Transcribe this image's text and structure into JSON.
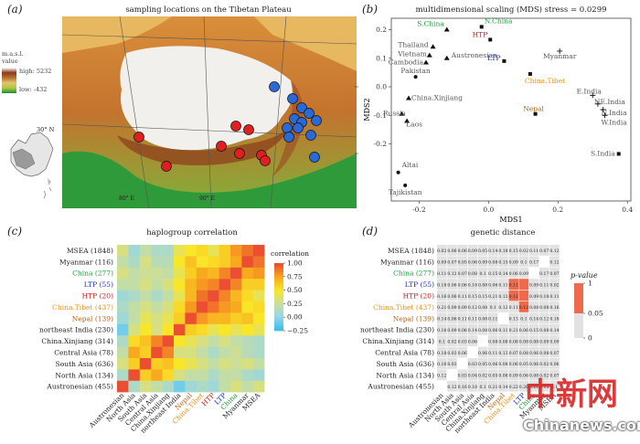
{
  "panels": {
    "a": {
      "letter": "(a)",
      "title": "sampling locations on the Tibetan Plateau",
      "legend_title": "m.a.s.l. value",
      "legend_high": "high: 5232",
      "legend_low": "low: -432",
      "lat_label": "30° N",
      "lon_labels": [
        "80° E",
        "90° E"
      ]
    },
    "b": {
      "letter": "(b)",
      "title": "multidimensional scaling (MDS) stress = 0.0299",
      "xlabel": "MDS1",
      "ylabel": "MDS2"
    },
    "c": {
      "letter": "(c)",
      "title": "haplogroup correlation",
      "legend_title": "correlation"
    },
    "d": {
      "letter": "(d)",
      "title": "genetic distance",
      "legend_title": "p-value",
      "legend_ticks": [
        "1",
        "0.05",
        "0"
      ]
    }
  },
  "colors": {
    "china": "#1a9e3a",
    "ltp": "#1a2fbf",
    "htp": "#d01818",
    "tibet": "#e8901a",
    "nepal": "#b8600a",
    "black": "#222222",
    "site_red": "#e02020",
    "site_blue": "#2a6ad8"
  },
  "map_sites": {
    "red": [
      [
        152,
        150
      ],
      [
        182,
        182
      ],
      [
        258,
        138
      ],
      [
        272,
        142
      ],
      [
        242,
        160
      ],
      [
        262,
        168
      ],
      [
        286,
        170
      ],
      [
        290,
        176
      ]
    ],
    "blue": [
      [
        300,
        95
      ],
      [
        320,
        108
      ],
      [
        330,
        118
      ],
      [
        338,
        124
      ],
      [
        322,
        130
      ],
      [
        330,
        134
      ],
      [
        346,
        132
      ],
      [
        314,
        140
      ],
      [
        326,
        140
      ],
      [
        340,
        148
      ],
      [
        344,
        172
      ],
      [
        316,
        150
      ]
    ]
  },
  "chart_data": [
    {
      "type": "scatter",
      "title": "multidimensional scaling (MDS) stress = 0.0299",
      "xlabel": "MDS1",
      "ylabel": "MDS2",
      "xlim": [
        -0.28,
        0.41
      ],
      "ylim": [
        -0.4,
        0.24
      ],
      "xticks": [
        -0.2,
        0.0,
        0.2,
        0.4
      ],
      "yticks": [
        -0.2,
        -0.1,
        0.0,
        0.1,
        0.2
      ],
      "points": [
        {
          "label": "N.China",
          "x": -0.02,
          "y": 0.21,
          "color": "china",
          "marker": "square"
        },
        {
          "label": "S.China",
          "x": -0.12,
          "y": 0.2,
          "color": "china",
          "marker": "triangle"
        },
        {
          "label": "HTP",
          "x": 0.005,
          "y": 0.165,
          "color": "htp",
          "marker": "square"
        },
        {
          "label": "Thailand",
          "x": -0.16,
          "y": 0.14,
          "color": "black",
          "marker": "triangle"
        },
        {
          "label": "Vietnam",
          "x": -0.17,
          "y": 0.11,
          "color": "black",
          "marker": "triangle"
        },
        {
          "label": "Austronesian",
          "x": -0.12,
          "y": 0.1,
          "color": "black",
          "marker": "triangle"
        },
        {
          "label": "Cambodia",
          "x": -0.18,
          "y": 0.085,
          "color": "black",
          "marker": "triangle"
        },
        {
          "label": "LTP",
          "x": 0.045,
          "y": 0.09,
          "color": "ltp",
          "marker": "square"
        },
        {
          "label": "Myanmar",
          "x": 0.205,
          "y": 0.125,
          "color": "black",
          "marker": "plus"
        },
        {
          "label": "China.Tibet",
          "x": 0.12,
          "y": 0.045,
          "color": "tibet",
          "marker": "square"
        },
        {
          "label": "Pakistan",
          "x": -0.21,
          "y": 0.035,
          "color": "black",
          "marker": "circle"
        },
        {
          "label": "China.Xinjiang",
          "x": -0.23,
          "y": -0.04,
          "color": "black",
          "marker": "triangle"
        },
        {
          "label": "Nepal",
          "x": 0.135,
          "y": -0.095,
          "color": "nepal",
          "marker": "square"
        },
        {
          "label": "E.India",
          "x": 0.3,
          "y": -0.03,
          "color": "black",
          "marker": "plus"
        },
        {
          "label": "NE.India",
          "x": 0.315,
          "y": -0.06,
          "color": "black",
          "marker": "plus"
        },
        {
          "label": "N.India",
          "x": 0.33,
          "y": -0.08,
          "color": "black",
          "marker": "plus"
        },
        {
          "label": "W.India",
          "x": 0.335,
          "y": -0.1,
          "color": "black",
          "marker": "plus"
        },
        {
          "label": "Russia",
          "x": -0.25,
          "y": -0.095,
          "color": "black",
          "marker": "triangle"
        },
        {
          "label": "Laos",
          "x": -0.235,
          "y": -0.12,
          "color": "black",
          "marker": "triangle"
        },
        {
          "label": "S.India",
          "x": 0.375,
          "y": -0.235,
          "color": "black",
          "marker": "square"
        },
        {
          "label": "Altai",
          "x": -0.26,
          "y": -0.3,
          "color": "black",
          "marker": "circle"
        },
        {
          "label": "Tajikistan",
          "x": -0.24,
          "y": -0.345,
          "color": "black",
          "marker": "circle"
        }
      ]
    },
    {
      "type": "heatmap",
      "title": "haplogroup correlation",
      "legend_title": "correlation",
      "legend_ticks": [
        1.0,
        0.75,
        0.5,
        0.25,
        0.0,
        -0.25
      ],
      "rows": [
        {
          "label": "MSEA (1848)",
          "color": "black"
        },
        {
          "label": "Myanmar (116)",
          "color": "black"
        },
        {
          "label": "China (277)",
          "color": "china"
        },
        {
          "label": "LTP (55)",
          "color": "ltp"
        },
        {
          "label": "HTP (20)",
          "color": "htp"
        },
        {
          "label": "China.Tibet (437)",
          "color": "tibet"
        },
        {
          "label": "Nepal (139)",
          "color": "nepal"
        },
        {
          "label": "northeast India (230)",
          "color": "black"
        },
        {
          "label": "China.Xinjiang (314)",
          "color": "black"
        },
        {
          "label": "Central Asia (78)",
          "color": "black"
        },
        {
          "label": "South Asia (636)",
          "color": "black"
        },
        {
          "label": "North Asia (134)",
          "color": "black"
        },
        {
          "label": "Austronesian (455)",
          "color": "black"
        }
      ],
      "columns": [
        {
          "label": "Austronesian",
          "color": "black"
        },
        {
          "label": "North Asia",
          "color": "black"
        },
        {
          "label": "South Asia",
          "color": "black"
        },
        {
          "label": "Central Asia",
          "color": "black"
        },
        {
          "label": "China.Xinjiang",
          "color": "black"
        },
        {
          "label": "northeast India",
          "color": "black"
        },
        {
          "label": "Nepal",
          "color": "nepal"
        },
        {
          "label": "China.Tibet",
          "color": "tibet"
        },
        {
          "label": "HTP",
          "color": "htp"
        },
        {
          "label": "LTP",
          "color": "ltp"
        },
        {
          "label": "China",
          "color": "china"
        },
        {
          "label": "Myanmar",
          "color": "black"
        },
        {
          "label": "MSEA",
          "color": "black"
        }
      ],
      "values": [
        [
          0.3,
          0.05,
          0.2,
          0.1,
          0.1,
          0.4,
          0.5,
          0.55,
          0.4,
          0.6,
          0.8,
          0.9,
          1.0
        ],
        [
          0.2,
          0.1,
          0.3,
          0.15,
          0.15,
          0.5,
          0.65,
          0.5,
          0.55,
          0.6,
          0.75,
          1.0,
          0.9
        ],
        [
          0.3,
          0.2,
          0.25,
          0.25,
          0.2,
          0.4,
          0.6,
          0.75,
          0.7,
          0.85,
          1.0,
          0.75,
          0.8
        ],
        [
          0.2,
          0.2,
          0.3,
          0.2,
          0.3,
          0.5,
          0.7,
          0.8,
          0.85,
          1.0,
          0.85,
          0.6,
          0.6
        ],
        [
          0.05,
          0.1,
          0.2,
          0.1,
          0.2,
          0.4,
          0.7,
          0.9,
          1.0,
          0.85,
          0.7,
          0.55,
          0.4
        ],
        [
          0.1,
          0.2,
          0.3,
          0.2,
          0.3,
          0.55,
          0.8,
          1.0,
          0.9,
          0.8,
          0.75,
          0.5,
          0.55
        ],
        [
          0.05,
          0.2,
          0.4,
          0.3,
          0.4,
          0.6,
          1.0,
          0.8,
          0.7,
          0.7,
          0.6,
          0.65,
          0.5
        ],
        [
          -0.1,
          0.3,
          0.5,
          0.3,
          0.5,
          1.0,
          0.6,
          0.55,
          0.4,
          0.5,
          0.4,
          0.5,
          0.4
        ],
        [
          0.1,
          0.55,
          0.65,
          0.85,
          1.0,
          0.5,
          0.4,
          0.3,
          0.2,
          0.3,
          0.2,
          0.15,
          0.1
        ],
        [
          0.2,
          0.75,
          0.6,
          1.0,
          0.85,
          0.3,
          0.3,
          0.2,
          0.1,
          0.2,
          0.25,
          0.15,
          0.1
        ],
        [
          0.3,
          0.6,
          1.0,
          0.6,
          0.65,
          0.5,
          0.4,
          0.3,
          0.2,
          0.3,
          0.25,
          0.3,
          0.2
        ],
        [
          0.1,
          1.0,
          0.6,
          0.75,
          0.55,
          0.3,
          0.2,
          0.2,
          0.1,
          0.2,
          0.2,
          0.1,
          0.05
        ],
        [
          1.0,
          0.1,
          0.3,
          0.2,
          0.1,
          -0.1,
          0.05,
          0.1,
          0.05,
          0.2,
          0.3,
          0.2,
          0.3
        ]
      ]
    },
    {
      "type": "table",
      "title": "genetic distance",
      "rows": [
        "MSEA (1848)",
        "Myanmar (116)",
        "China (277)",
        "LTP (55)",
        "HTP (20)",
        "China.Tibet (437)",
        "Nepal (139)",
        "northeast India (230)",
        "China.Xinjiang (314)",
        "Central Asia (78)",
        "South Asia (636)",
        "North Asia (134)",
        "Austronesian (455)"
      ],
      "row_colors": [
        "black",
        "black",
        "china",
        "ltp",
        "htp",
        "tibet",
        "nepal",
        "black",
        "black",
        "black",
        "black",
        "black",
        "black"
      ],
      "columns": [
        "Austronesian",
        "North Asia",
        "South Asia",
        "Central Asia",
        "China.Xinjiang",
        "northeast India",
        "Nepal",
        "China.Tibet",
        "LTP",
        "China",
        "Myanmar",
        "MSEA"
      ],
      "column_colors": [
        "black",
        "black",
        "black",
        "black",
        "black",
        "black",
        "nepal",
        "tibet",
        "ltp",
        "china",
        "black",
        "black"
      ],
      "cells": [
        [
          "0.02",
          "0.06",
          "0.06",
          "0.09",
          "0.05",
          "0.14",
          "0.18",
          "0.15",
          "0.02",
          "0.11",
          "0.07",
          "0.12"
        ],
        [
          "0.09",
          "0.07",
          "0.05",
          "0.06",
          "0.09",
          "0.08",
          "0.15",
          "0.09",
          "0.1",
          "0.17",
          "",
          "0.12"
        ],
        [
          "0.11",
          "0.12",
          "0.07",
          "0.08",
          "0.1",
          "0.15",
          "0.14",
          "0.06",
          "0.09",
          "",
          "0.17",
          "0.07"
        ],
        [
          "0.18",
          "0.06",
          "0.06",
          "0.18",
          "0.08",
          "0.06",
          "0.11",
          "0.12",
          "",
          "0.09",
          "0.11",
          "0.02"
        ],
        [
          "0.16",
          "0.06",
          "0.11",
          "0.15",
          "0.15",
          "0.21",
          "0.12",
          "0.12",
          "",
          "0.09",
          "0.18",
          "0.11"
        ],
        [
          "0.21",
          "0.09",
          "0.09",
          "0.12",
          "0.08",
          "0.1",
          "0.12",
          "0.11",
          "0.12",
          "0.08",
          "0.08",
          "0.16"
        ],
        [
          "0.14",
          "0.06",
          "0.11",
          "0.11",
          "0.08",
          "0.11",
          "",
          "0.13",
          "0.1",
          "0.14",
          "0.12",
          "0.18"
        ],
        [
          "0.16",
          "0.09",
          "0.06",
          "0.14",
          "0.08",
          "0.06",
          "0.11",
          "0.21",
          "0.06",
          "0.15",
          "0.08",
          "0.14"
        ],
        [
          "0.1",
          "0.02",
          "0.03",
          "0.06",
          "",
          "0.08",
          "0.08",
          "0.08",
          "0.08",
          "0.08",
          "0.09",
          "0.09"
        ],
        [
          "0.18",
          "0.03",
          "0.06",
          "",
          "0.06",
          "0.11",
          "0.13",
          "0.07",
          "0.08",
          "0.06",
          "0.08",
          "0.07"
        ],
        [
          "0.16",
          "0.03",
          "",
          "0.03",
          "0.05",
          "0.06",
          "0.08",
          "0.06",
          "0.05",
          "0.06",
          "0.02",
          "0.06"
        ],
        [
          "0.12",
          "",
          "0.03",
          "0.04",
          "0.02",
          "0.05",
          "0.08",
          "0.09",
          "0.06",
          "0.08",
          "0.02",
          "0.07"
        ],
        [
          "",
          "0.12",
          "0.16",
          "0.18",
          "0.1",
          "0.21",
          "0.14",
          "0.22",
          "0.26",
          "0.21",
          "0.15",
          "0.1"
        ]
      ],
      "significant": [
        [
          3,
          7
        ],
        [
          3,
          8
        ],
        [
          4,
          7
        ],
        [
          4,
          8
        ],
        [
          5,
          8
        ]
      ]
    }
  ],
  "watermark": {
    "text": "中新网",
    "url": "Chinanews.com"
  }
}
